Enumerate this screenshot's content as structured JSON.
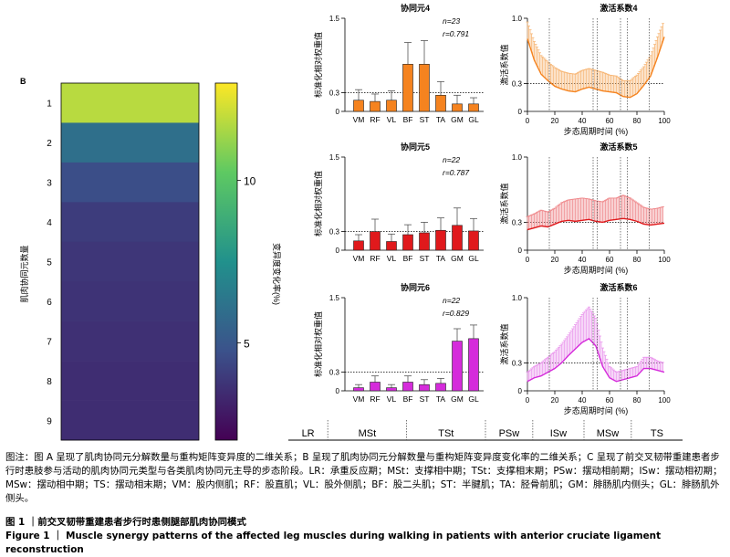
{
  "heatmap": {
    "panel_label": "B",
    "ylabel": "肌肉协同元数量",
    "rows": [
      "1",
      "2",
      "3",
      "4",
      "5",
      "6",
      "7",
      "8",
      "9"
    ],
    "values": [
      11.8,
      6.0,
      4.6,
      4.0,
      3.8,
      3.7,
      3.6,
      3.5,
      3.5
    ],
    "colorbar": {
      "ticks": [
        5,
        10
      ],
      "label": "变异度变化率(%)",
      "min": 2,
      "max": 13
    }
  },
  "synergies": [
    {
      "title": "协同元4",
      "n": "n=23",
      "r": "r=0.791",
      "act_title": "激活系数4",
      "color": "#f5831f",
      "light": "#f7b777"
    },
    {
      "title": "协同元5",
      "n": "n=22",
      "r": "r=0.787",
      "act_title": "激活系数5",
      "color": "#e0191c",
      "light": "#ef8a8d"
    },
    {
      "title": "协同元6",
      "n": "n=22",
      "r": "r=0.829",
      "act_title": "激活系数6",
      "color": "#d52bdb",
      "light": "#ea97ed"
    }
  ],
  "bar_axis": {
    "ylabel": "标准化相对权重值",
    "yticks": [
      "0",
      "0.3",
      "1.5"
    ]
  },
  "act_axis": {
    "ylabel": "激活系数值",
    "yticks": [
      "0",
      "0.3",
      "1.0"
    ],
    "xticks": [
      "0",
      "20",
      "40",
      "60",
      "80",
      "100"
    ],
    "xlabel": "步态周期时间 (%)"
  },
  "chart_data": [
    {
      "type": "bar",
      "title": "协同元4",
      "categories": [
        "VM",
        "RF",
        "VL",
        "BF",
        "ST",
        "TA",
        "GM",
        "GL"
      ],
      "values": [
        0.18,
        0.16,
        0.18,
        0.76,
        0.76,
        0.26,
        0.12,
        0.12
      ],
      "errors": [
        0.17,
        0.12,
        0.15,
        0.35,
        0.38,
        0.22,
        0.14,
        0.1
      ],
      "ylim": [
        0,
        1.5
      ],
      "ylabel": "标准化相对权重值"
    },
    {
      "type": "line",
      "title": "激活系数4",
      "x": [
        0,
        5,
        10,
        15,
        20,
        25,
        30,
        35,
        40,
        45,
        50,
        55,
        60,
        65,
        70,
        75,
        80,
        85,
        90,
        95,
        100
      ],
      "y": [
        0.78,
        0.55,
        0.4,
        0.33,
        0.27,
        0.24,
        0.22,
        0.21,
        0.24,
        0.26,
        0.24,
        0.22,
        0.21,
        0.2,
        0.16,
        0.15,
        0.19,
        0.28,
        0.38,
        0.58,
        0.8
      ],
      "error": [
        0.18,
        0.2,
        0.2,
        0.2,
        0.2,
        0.19,
        0.19,
        0.19,
        0.2,
        0.2,
        0.2,
        0.2,
        0.18,
        0.18,
        0.17,
        0.18,
        0.2,
        0.2,
        0.22,
        0.22,
        0.18
      ],
      "ylim": [
        0,
        1.0
      ],
      "xlim": [
        0,
        100
      ],
      "xlabel": "步态周期时间 (%)",
      "ylabel": "激活系数值"
    },
    {
      "type": "bar",
      "title": "协同元5",
      "categories": [
        "VM",
        "RF",
        "VL",
        "BF",
        "ST",
        "TA",
        "GM",
        "GL"
      ],
      "values": [
        0.15,
        0.3,
        0.14,
        0.25,
        0.28,
        0.32,
        0.4,
        0.31
      ],
      "errors": [
        0.1,
        0.2,
        0.12,
        0.16,
        0.17,
        0.2,
        0.28,
        0.2
      ],
      "ylim": [
        0,
        1.5
      ],
      "ylabel": "标准化相对权重值"
    },
    {
      "type": "line",
      "title": "激活系数5",
      "x": [
        0,
        5,
        10,
        15,
        20,
        25,
        30,
        35,
        40,
        45,
        50,
        55,
        60,
        65,
        70,
        75,
        80,
        85,
        90,
        95,
        100
      ],
      "y": [
        0.22,
        0.24,
        0.26,
        0.25,
        0.28,
        0.31,
        0.32,
        0.31,
        0.32,
        0.33,
        0.31,
        0.3,
        0.32,
        0.33,
        0.34,
        0.33,
        0.31,
        0.28,
        0.27,
        0.28,
        0.29
      ],
      "error": [
        0.14,
        0.15,
        0.17,
        0.16,
        0.17,
        0.2,
        0.22,
        0.24,
        0.24,
        0.22,
        0.22,
        0.22,
        0.24,
        0.23,
        0.25,
        0.23,
        0.2,
        0.18,
        0.17,
        0.17,
        0.18
      ],
      "ylim": [
        0,
        1.0
      ],
      "xlim": [
        0,
        100
      ],
      "xlabel": "步态周期时间 (%)",
      "ylabel": "激活系数值"
    },
    {
      "type": "bar",
      "title": "协同元6",
      "categories": [
        "VM",
        "RF",
        "VL",
        "BF",
        "ST",
        "TA",
        "GM",
        "GL"
      ],
      "values": [
        0.05,
        0.14,
        0.05,
        0.14,
        0.1,
        0.12,
        0.8,
        0.84
      ],
      "errors": [
        0.05,
        0.1,
        0.05,
        0.1,
        0.08,
        0.08,
        0.2,
        0.22
      ],
      "ylim": [
        0,
        1.5
      ],
      "ylabel": "标准化相对权重值"
    },
    {
      "type": "line",
      "title": "激活系数6",
      "x": [
        0,
        5,
        10,
        15,
        20,
        25,
        30,
        35,
        40,
        45,
        50,
        55,
        60,
        65,
        70,
        75,
        80,
        85,
        90,
        95,
        100
      ],
      "y": [
        0.1,
        0.14,
        0.16,
        0.2,
        0.24,
        0.3,
        0.38,
        0.45,
        0.52,
        0.56,
        0.48,
        0.26,
        0.14,
        0.1,
        0.12,
        0.14,
        0.16,
        0.24,
        0.24,
        0.22,
        0.2
      ],
      "error": [
        0.1,
        0.12,
        0.14,
        0.16,
        0.18,
        0.2,
        0.22,
        0.26,
        0.3,
        0.34,
        0.3,
        0.2,
        0.12,
        0.1,
        0.1,
        0.1,
        0.1,
        0.12,
        0.12,
        0.1,
        0.1
      ],
      "ylim": [
        0,
        1.0
      ],
      "xlim": [
        0,
        100
      ],
      "xlabel": "步态周期时间 (%)",
      "ylabel": "激活系数值"
    },
    {
      "type": "heatmap",
      "title": "",
      "ylabel": "肌肉协同元数量",
      "categories": [
        "1",
        "2",
        "3",
        "4",
        "5",
        "6",
        "7",
        "8",
        "9"
      ],
      "values": [
        11.8,
        6.0,
        4.6,
        4.0,
        3.8,
        3.7,
        3.6,
        3.5,
        3.5
      ],
      "colorbar_label": "变异度变化率(%)",
      "colorbar_ticks": [
        5,
        10
      ]
    }
  ],
  "phases": {
    "items": [
      "LR",
      "MSt",
      "TSt",
      "PSw",
      "ISw",
      "MSw",
      "TS"
    ],
    "bounds": [
      0,
      10,
      30,
      50,
      62,
      75,
      87,
      100
    ]
  },
  "caption": {
    "note": "图注：图 A 呈现了肌肉协同元分解数量与重构矩阵变异度的二维关系；B 呈现了肌肉协同元分解数量与重构矩阵变异度变化率的二维关系；C 呈现了前交叉韧带重建患者步行时患肢参与活动的肌肉协同元类型与各类肌肉协同元主导的步态阶段。LR：承重反应期；MSt：支撑相中期；TSt：支撑相末期；PSw：摆动相前期；ISw：摆动相初期；MSw：摆动相中期；TS：摆动相末期；VM：股内侧肌；RF：股直肌；VL：股外侧肌；BF：股二头肌；ST：半腱肌；TA：胫骨前肌；GM：腓肠肌内侧头；GL：腓肠肌外侧头。",
    "figure_cn": "图 1 ｜前交叉韧带重建患者步行时患侧腿部肌肉协同模式",
    "figure_en": "Figure 1 ｜ Muscle synergy patterns of the affected leg muscles during walking in patients with anterior cruciate ligament reconstruction"
  }
}
